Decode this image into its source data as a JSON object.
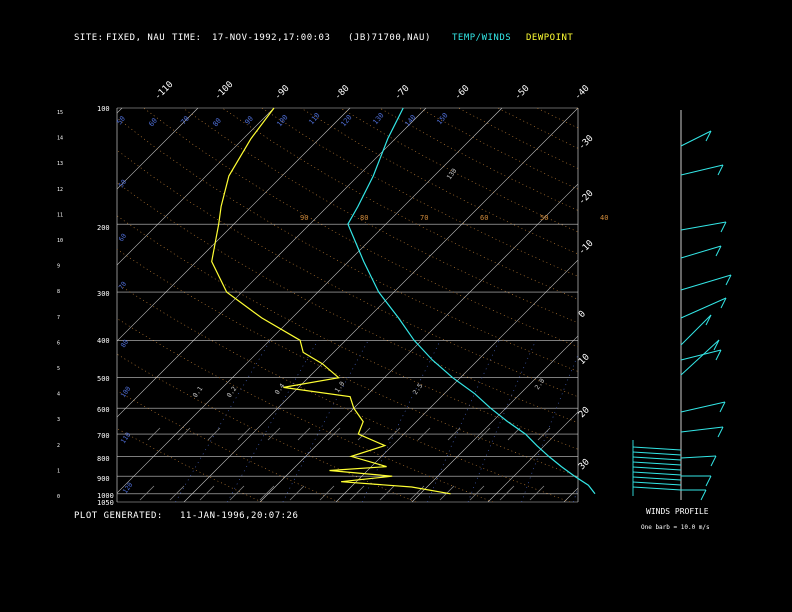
{
  "header": {
    "site_label": "SITE:",
    "site_value": "FIXED, NAU",
    "time_label": "TIME:",
    "time_value": "17-NOV-1992,17:00:03",
    "station_code": "(JB)71700,NAU)",
    "legend_temp": "TEMP/WINDS",
    "legend_dewpoint": "DEWPOINT"
  },
  "footer": {
    "generated_label": "PLOT GENERATED:",
    "generated_value": "11-JAN-1996,20:07:26",
    "winds_profile": "WINDS PROFILE",
    "barb_note": "One barb = 10.0 m/s"
  },
  "colors": {
    "temp": "#33e6e6",
    "dewpoint": "#ffff33",
    "isobar": "#c8c8c8",
    "isotherm": "#c8c8c8",
    "dry_adiabat": "#d08a3a",
    "moist_adiabat": "#d08a3a",
    "mixing_ratio": "#4f6fd8",
    "text": "#ffffff"
  },
  "chart_data": {
    "type": "line",
    "title": "",
    "pressure_ticks": [
      "100",
      "200",
      "300",
      "400",
      "500",
      "600",
      "700",
      "800",
      "900",
      "1000",
      "1050"
    ],
    "height_ticks": [
      "15",
      "14",
      "13",
      "12",
      "11",
      "10",
      "9",
      "8",
      "7",
      "6",
      "5",
      "4",
      "3",
      "2",
      "1",
      "0"
    ],
    "top_temp_ticks": [
      "-110",
      "-100",
      "-90",
      "-80",
      "-70",
      "-60",
      "-50",
      "-40"
    ],
    "right_temp_ticks": [
      "-30",
      "-20",
      "-10",
      "0",
      "10",
      "20",
      "30"
    ],
    "theta_labels": [
      "90",
      "80",
      "70",
      "60",
      "50",
      "40"
    ],
    "mixing_labels": [
      "50",
      "60",
      "70",
      "80",
      "90",
      "100",
      "110",
      "120",
      "130",
      "140",
      "150"
    ],
    "misc_labels": [
      "50",
      "60",
      "70",
      "80",
      "100",
      "110",
      "120",
      "130",
      "2.0",
      "2.5",
      "1.0",
      "0.4",
      "0.2",
      "0.1"
    ],
    "series": [
      {
        "name": "TEMP/WINDS",
        "points": [
          [
            100,
            -63
          ],
          [
            120,
            -61
          ],
          [
            150,
            -58
          ],
          [
            180,
            -56
          ],
          [
            200,
            -55
          ],
          [
            220,
            -52
          ],
          [
            250,
            -48
          ],
          [
            300,
            -42
          ],
          [
            350,
            -36
          ],
          [
            400,
            -31
          ],
          [
            450,
            -26
          ],
          [
            500,
            -21
          ],
          [
            550,
            -16
          ],
          [
            600,
            -12
          ],
          [
            650,
            -8
          ],
          [
            700,
            -4
          ],
          [
            750,
            -1
          ],
          [
            800,
            2
          ],
          [
            850,
            5
          ],
          [
            900,
            8
          ],
          [
            950,
            11
          ],
          [
            1000,
            13
          ]
        ]
      },
      {
        "name": "DEWPOINT",
        "points": [
          [
            100,
            -80
          ],
          [
            120,
            -79
          ],
          [
            150,
            -77
          ],
          [
            180,
            -74
          ],
          [
            200,
            -72
          ],
          [
            250,
            -68
          ],
          [
            300,
            -62
          ],
          [
            350,
            -54
          ],
          [
            400,
            -46
          ],
          [
            430,
            -44
          ],
          [
            460,
            -40
          ],
          [
            500,
            -36
          ],
          [
            530,
            -42
          ],
          [
            560,
            -32
          ],
          [
            600,
            -30
          ],
          [
            650,
            -27
          ],
          [
            700,
            -26
          ],
          [
            750,
            -21
          ],
          [
            800,
            -24
          ],
          [
            850,
            -18
          ],
          [
            870,
            -25
          ],
          [
            900,
            -16
          ],
          [
            930,
            -22
          ],
          [
            960,
            -12
          ],
          [
            1000,
            -6
          ]
        ]
      }
    ]
  }
}
